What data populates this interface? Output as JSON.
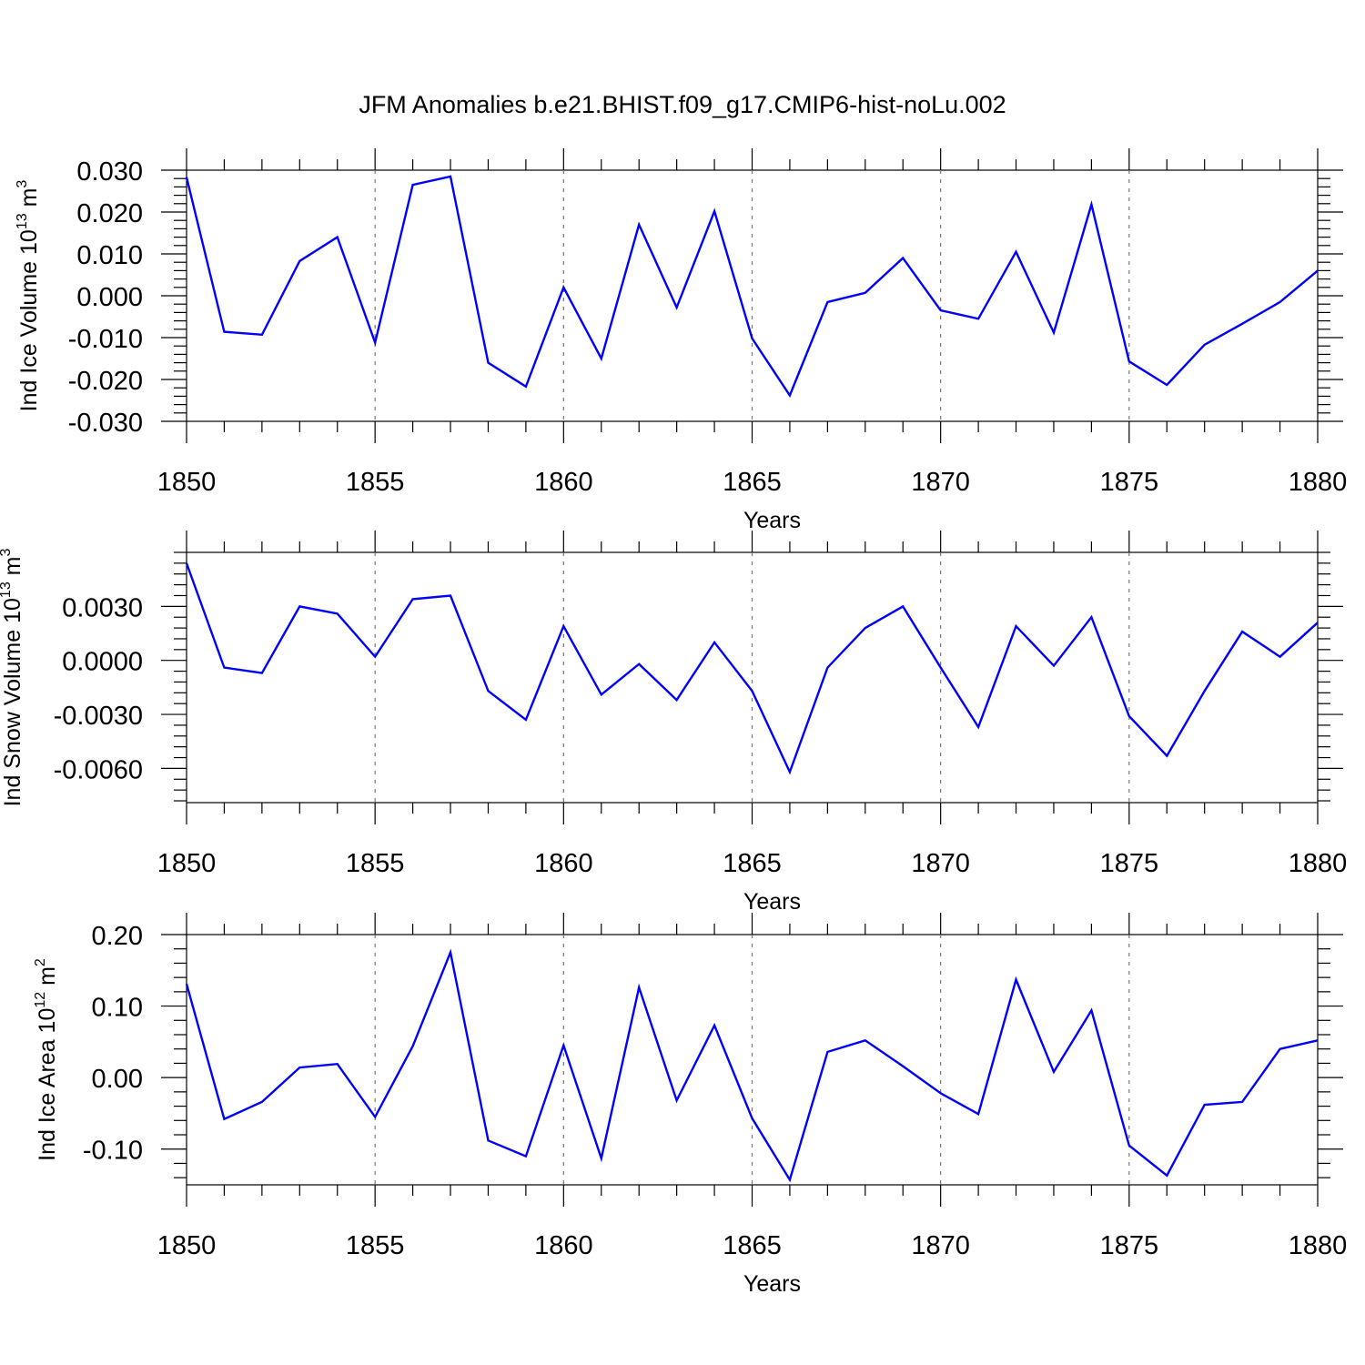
{
  "title": "JFM Anomalies b.e21.BHIST.f09_g17.CMIP6-hist-noLu.002",
  "line_color": "#0000ff",
  "chart_data": [
    {
      "type": "line",
      "ylabel_prefix": "Ind Ice Volume 10",
      "ylabel_exp": "13",
      "ylabel_unit": " m",
      "ylabel_unit_exp": "3",
      "xlabel": "Years",
      "xlim": [
        1850,
        1880
      ],
      "ylim": [
        -0.03,
        0.03
      ],
      "yticks": [
        "-0.030",
        "-0.020",
        "-0.010",
        "0.000",
        "0.010",
        "0.020",
        "0.030"
      ],
      "xticks": [
        "1850",
        "1855",
        "1860",
        "1865",
        "1870",
        "1875",
        "1880"
      ],
      "x": [
        1850,
        1851,
        1852,
        1853,
        1854,
        1855,
        1856,
        1857,
        1858,
        1859,
        1860,
        1861,
        1862,
        1863,
        1864,
        1865,
        1866,
        1867,
        1868,
        1869,
        1870,
        1871,
        1872,
        1873,
        1874,
        1875,
        1876,
        1877,
        1878,
        1879,
        1880
      ],
      "values": [
        0.0283,
        -0.0086,
        -0.0093,
        0.0083,
        0.014,
        -0.0112,
        0.0265,
        0.0285,
        -0.016,
        -0.0217,
        0.002,
        -0.015,
        0.017,
        -0.0028,
        0.0202,
        -0.0102,
        -0.0238,
        -0.0015,
        0.0007,
        0.009,
        -0.0035,
        -0.0055,
        0.0105,
        -0.0088,
        0.0218,
        -0.0157,
        -0.0213,
        -0.0117,
        -0.0067,
        -0.0015,
        0.006
      ]
    },
    {
      "type": "line",
      "ylabel_prefix": "Ind Snow Volume 10",
      "ylabel_exp": "13",
      "ylabel_unit": " m",
      "ylabel_unit_exp": "3",
      "xlabel": "Years",
      "xlim": [
        1850,
        1880
      ],
      "ylim": [
        -0.0079,
        0.006
      ],
      "yticks": [
        "-0.0060",
        "-0.0030",
        "0.0000",
        "0.0030"
      ],
      "xticks": [
        "1850",
        "1855",
        "1860",
        "1865",
        "1870",
        "1875",
        "1880"
      ],
      "x": [
        1850,
        1851,
        1852,
        1853,
        1854,
        1855,
        1856,
        1857,
        1858,
        1859,
        1860,
        1861,
        1862,
        1863,
        1864,
        1865,
        1866,
        1867,
        1868,
        1869,
        1870,
        1871,
        1872,
        1873,
        1874,
        1875,
        1876,
        1877,
        1878,
        1879,
        1880
      ],
      "values": [
        0.0054,
        -0.0004,
        -0.0007,
        0.003,
        0.0026,
        0.0002,
        0.0034,
        0.0036,
        -0.0017,
        -0.0033,
        0.0019,
        -0.0019,
        -0.0002,
        -0.0022,
        0.001,
        -0.0017,
        -0.0062,
        -0.0004,
        0.0018,
        0.003,
        -0.0004,
        -0.0037,
        0.0019,
        -0.0003,
        0.0024,
        -0.0031,
        -0.0053,
        -0.0017,
        0.0016,
        0.0002,
        0.0021
      ]
    },
    {
      "type": "line",
      "ylabel_prefix": "Ind Ice Area 10",
      "ylabel_exp": "12",
      "ylabel_unit": " m",
      "ylabel_unit_exp": "2",
      "xlabel": "Years",
      "xlim": [
        1850,
        1880
      ],
      "ylim": [
        -0.15,
        0.2
      ],
      "yticks": [
        "-0.10",
        "0.00",
        "0.10",
        "0.20"
      ],
      "xticks": [
        "1850",
        "1855",
        "1860",
        "1865",
        "1870",
        "1875",
        "1880"
      ],
      "x": [
        1850,
        1851,
        1852,
        1853,
        1854,
        1855,
        1856,
        1857,
        1858,
        1859,
        1860,
        1861,
        1862,
        1863,
        1864,
        1865,
        1866,
        1867,
        1868,
        1869,
        1870,
        1871,
        1872,
        1873,
        1874,
        1875,
        1876,
        1877,
        1878,
        1879,
        1880
      ],
      "values": [
        0.131,
        -0.058,
        -0.034,
        0.014,
        0.019,
        -0.055,
        0.044,
        0.175,
        -0.088,
        -0.11,
        0.045,
        -0.113,
        0.126,
        -0.032,
        0.073,
        -0.057,
        -0.143,
        0.036,
        0.052,
        0.016,
        -0.022,
        -0.051,
        0.137,
        0.008,
        0.094,
        -0.095,
        -0.137,
        -0.038,
        -0.034,
        0.04,
        0.052
      ]
    }
  ]
}
